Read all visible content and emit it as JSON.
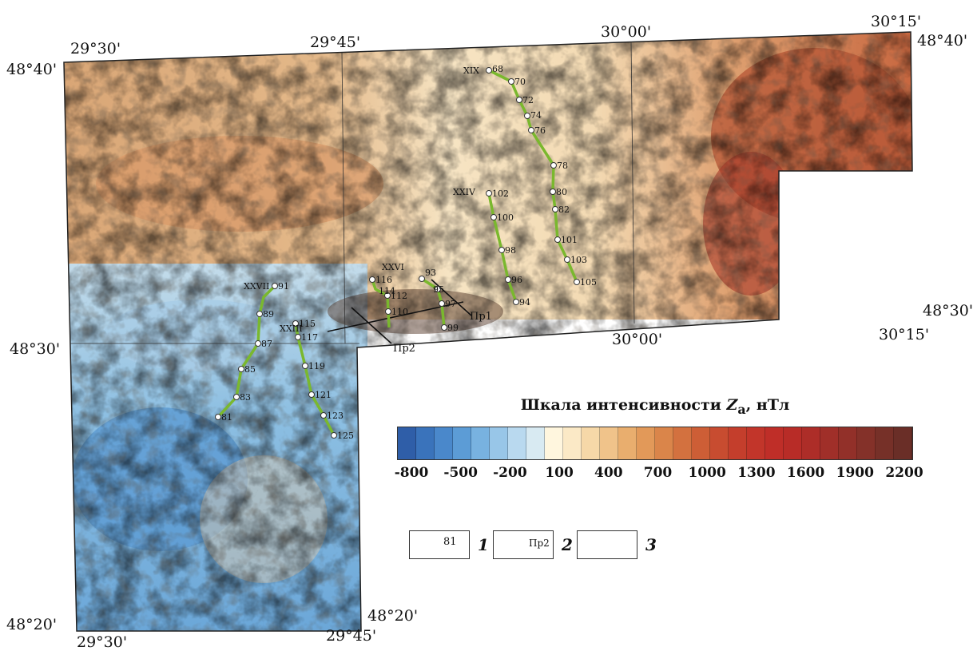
{
  "coordinates": {
    "top_left_lat": "48°40'",
    "top_left_lon": "29°30'",
    "top_mid1_lon": "29°45'",
    "top_mid2_lon": "30°00'",
    "top_right_lon": "30°15'",
    "top_right_lat": "48°40'",
    "right_lat": "48°30'",
    "right_lon": "30°15'",
    "mid_lon": "30°00'",
    "left_lat": "48°30'",
    "bottom_left_lat": "48°20'",
    "bottom_left_lon": "29°30'",
    "bottom_right_lat": "48°20'",
    "bottom_right_lon": "29°45'"
  },
  "scale": {
    "title_prefix": "Шкала интенсивности ",
    "title_symbol": "Z",
    "title_subscript": "a",
    "title_suffix": ", нТл",
    "labels": [
      "-800",
      "-500",
      "-200",
      "100",
      "400",
      "700",
      "1000",
      "1300",
      "1600",
      "1900",
      "2200"
    ],
    "colors": [
      "#2f5ea8",
      "#3a73bb",
      "#4a88cb",
      "#5c9cd6",
      "#78b2e0",
      "#98c6e8",
      "#b9d9ef",
      "#d8eaf2",
      "#fff6de",
      "#fbe9c6",
      "#f6d8a8",
      "#f0c38a",
      "#e9ae6e",
      "#e29959",
      "#da854a",
      "#d3713f",
      "#cd5e36",
      "#c84c30",
      "#c43e2c",
      "#c2352a",
      "#bf2e28",
      "#b82c27",
      "#ad2d28",
      "#a02f29",
      "#923029",
      "#843129",
      "#763028",
      "#6a2e27"
    ]
  },
  "profiles": [
    {
      "id": "XIX",
      "points": [
        "68",
        "70",
        "72",
        "74",
        "76",
        "78",
        "80",
        "82",
        "101",
        "103",
        "105"
      ]
    },
    {
      "id": "XXIV",
      "points": [
        "102",
        "100",
        "98",
        "96",
        "94"
      ]
    },
    {
      "id": "XXVI",
      "points": [
        "93",
        "95",
        "97",
        "99"
      ]
    },
    {
      "id": "XXVI_b",
      "points": [
        "116",
        "114",
        "112",
        "110"
      ]
    },
    {
      "id": "XXVII",
      "points": [
        "91",
        "89",
        "87",
        "85",
        "83",
        "81"
      ]
    },
    {
      "id": "XXVIII",
      "points": [
        "115",
        "117",
        "119",
        "121",
        "123",
        "125"
      ]
    }
  ],
  "profile_labels": {
    "xix": "XIX",
    "xxiv": "XXIV",
    "xxvi": "XXVI",
    "xxvii": "XXVII",
    "xxiii": "XXIII"
  },
  "section_lines": {
    "pr1": "Пр1",
    "pr2": "Пр2"
  },
  "legend": {
    "item1_number": "81",
    "item1_index": "1",
    "item2_label": "Пр2",
    "item2_index": "2",
    "item3_index": "3",
    "profile_color": "#7ab82e"
  }
}
